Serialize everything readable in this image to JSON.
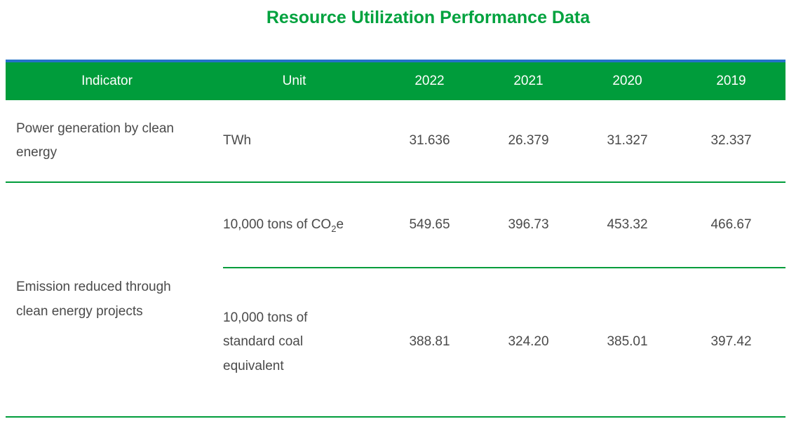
{
  "title": "Resource Utilization Performance Data",
  "colors": {
    "accent_green": "#009C3B",
    "title_green": "#00A23E",
    "header_top_strip_blue": "#2472C8",
    "header_text": "#FFFFFF",
    "body_text": "#4A4A4A"
  },
  "table": {
    "headers": [
      "Indicator",
      "Unit",
      "2022",
      "2021",
      "2020",
      "2019"
    ],
    "rows": [
      {
        "indicator": "Power generation by clean energy",
        "unit": "TWh",
        "values": [
          "31.636",
          "26.379",
          "31.327",
          "32.337"
        ]
      },
      {
        "indicator": "Emission reduced through clean energy projects",
        "subrows": [
          {
            "unit_prefix": "10,000 tons of CO",
            "unit_sub": "2",
            "unit_suffix": "e",
            "values": [
              "549.65",
              "396.73",
              "453.32",
              "466.67"
            ]
          },
          {
            "unit": "10,000 tons of standard coal equivalent",
            "values": [
              "388.81",
              "324.20",
              "385.01",
              "397.42"
            ]
          }
        ]
      }
    ]
  },
  "chart_data": {
    "type": "table",
    "title": "Resource Utilization Performance Data",
    "columns": [
      "Indicator",
      "Unit",
      "2022",
      "2021",
      "2020",
      "2019"
    ],
    "rows": [
      [
        "Power generation by clean energy",
        "TWh",
        "31.636",
        "26.379",
        "31.327",
        "32.337"
      ],
      [
        "Emission reduced through clean energy projects",
        "10,000 tons of CO2e",
        "549.65",
        "396.73",
        "453.32",
        "466.67"
      ],
      [
        "Emission reduced through clean energy projects",
        "10,000 tons of standard coal equivalent",
        "388.81",
        "324.20",
        "385.01",
        "397.42"
      ]
    ]
  }
}
